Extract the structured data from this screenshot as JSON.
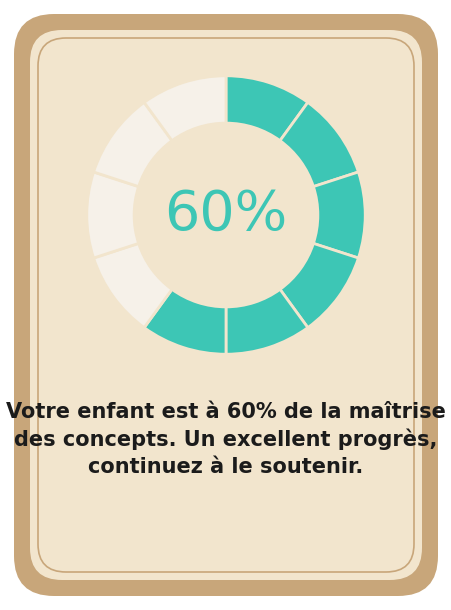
{
  "chart_data": {
    "type": "donut",
    "values": [
      60,
      40
    ],
    "colors": [
      "#3dc6b5",
      "#f6f1e9"
    ],
    "center_label": "60%",
    "caption": "Votre enfant est à 60% de la maîtrise des concepts. Un excellent progrès, continuez à le soutenir."
  }
}
